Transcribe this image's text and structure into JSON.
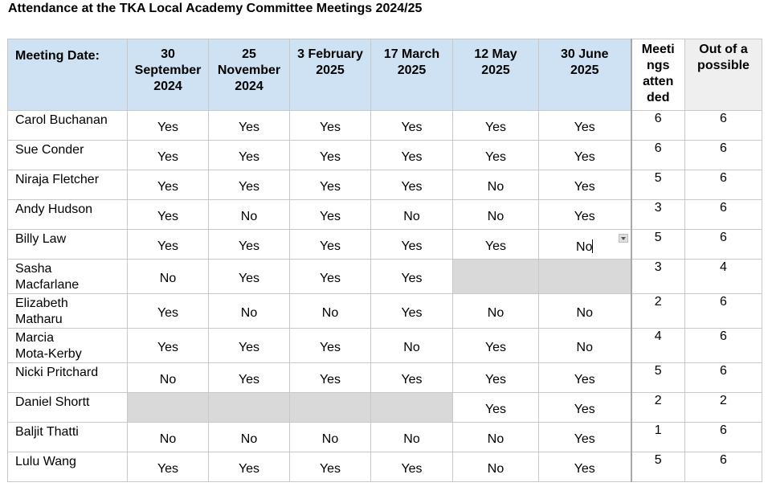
{
  "title": "Attendance at the TKA Local Academy Committee Meetings 2024/25",
  "headers": {
    "meeting_date": "Meeting Date:",
    "dates": [
      [
        "30",
        "September",
        "2024"
      ],
      [
        "25",
        "November",
        "2024"
      ],
      [
        "3 February",
        "2025"
      ],
      [
        "17 March",
        "2025"
      ],
      [
        "12 May",
        "2025"
      ],
      [
        "30 June",
        "2025"
      ]
    ],
    "meetings_attended": [
      "Meeti",
      "ngs",
      "atten",
      "ded"
    ],
    "out_of": [
      "Out of a",
      "possible"
    ]
  },
  "rows": [
    {
      "name": [
        "Carol Buchanan"
      ],
      "att": [
        "Yes",
        "Yes",
        "Yes",
        "Yes",
        "Yes",
        "Yes"
      ],
      "attended": "6",
      "possible": "6"
    },
    {
      "name": [
        "Sue Conder"
      ],
      "att": [
        "Yes",
        "Yes",
        "Yes",
        "Yes",
        "Yes",
        "Yes"
      ],
      "attended": "6",
      "possible": "6"
    },
    {
      "name": [
        "Niraja Fletcher"
      ],
      "att": [
        "Yes",
        "Yes",
        "Yes",
        "Yes",
        "No",
        "Yes"
      ],
      "attended": "5",
      "possible": "6"
    },
    {
      "name": [
        "Andy Hudson"
      ],
      "att": [
        "Yes",
        "No",
        "Yes",
        "No",
        "No",
        "Yes"
      ],
      "attended": "3",
      "possible": "6"
    },
    {
      "name": [
        "Billy Law"
      ],
      "att": [
        "Yes",
        "Yes",
        "Yes",
        "Yes",
        "Yes",
        "No"
      ],
      "attended": "5",
      "possible": "6"
    },
    {
      "name": [
        "Sasha",
        "Macfarlane"
      ],
      "att": [
        "No",
        "Yes",
        "Yes",
        "Yes",
        null,
        null
      ],
      "attended": "3",
      "possible": "4"
    },
    {
      "name": [
        "Elizabeth",
        "Matharu"
      ],
      "att": [
        "Yes",
        "No",
        "No",
        "Yes",
        "No",
        "No"
      ],
      "attended": "2",
      "possible": "6"
    },
    {
      "name": [
        "Marcia",
        "Mota-Kerby"
      ],
      "att": [
        "Yes",
        "Yes",
        "Yes",
        "No",
        "Yes",
        "No"
      ],
      "attended": "4",
      "possible": "6"
    },
    {
      "name": [
        "Nicki Pritchard"
      ],
      "att": [
        "No",
        "Yes",
        "Yes",
        "Yes",
        "Yes",
        "Yes"
      ],
      "attended": "5",
      "possible": "6"
    },
    {
      "name": [
        "Daniel Shortt"
      ],
      "att": [
        null,
        null,
        null,
        null,
        "Yes",
        "Yes"
      ],
      "attended": "2",
      "possible": "2"
    },
    {
      "name": [
        "Baljit Thatti"
      ],
      "att": [
        "No",
        "No",
        "No",
        "No",
        "No",
        "Yes"
      ],
      "attended": "1",
      "possible": "6"
    },
    {
      "name": [
        "Lulu Wang"
      ],
      "att": [
        "Yes",
        "Yes",
        "Yes",
        "Yes",
        "No",
        "Yes"
      ],
      "attended": "5",
      "possible": "6"
    }
  ]
}
